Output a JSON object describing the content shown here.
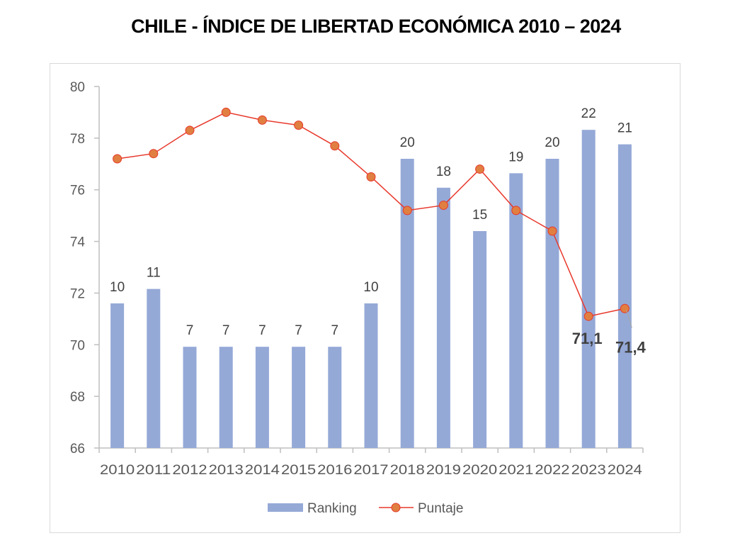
{
  "chart_data": {
    "type": "bar+line",
    "title": "CHILE - ÍNDICE DE LIBERTAD ECONÓMICA 2010 – 2024",
    "xlabel": "",
    "ylabel": "",
    "categories": [
      "2010",
      "2011",
      "2012",
      "2013",
      "2014",
      "2015",
      "2016",
      "2017",
      "2018",
      "2019",
      "2020",
      "2021",
      "2022",
      "2023",
      "2024"
    ],
    "ylim": [
      66,
      80
    ],
    "yticks": [
      66,
      68,
      70,
      72,
      74,
      76,
      78,
      80
    ],
    "secondary_ylim": [
      0,
      25
    ],
    "grid": false,
    "legend_position": "bottom",
    "series": [
      {
        "name": "Ranking",
        "type": "bar",
        "axis": "secondary",
        "color": "#95a9d7",
        "values": [
          10,
          11,
          7,
          7,
          7,
          7,
          7,
          10,
          20,
          18,
          15,
          19,
          20,
          22,
          21
        ],
        "data_labels": [
          "10",
          "11",
          "7",
          "7",
          "7",
          "7",
          "7",
          "10",
          "20",
          "18",
          "15",
          "19",
          "20",
          "22",
          "21"
        ]
      },
      {
        "name": "Puntaje",
        "type": "line",
        "axis": "primary",
        "line_color": "#e8382b",
        "marker_color": "#e07f41",
        "values": [
          77.2,
          77.4,
          78.3,
          79.0,
          78.7,
          78.5,
          77.7,
          76.5,
          75.2,
          75.4,
          76.8,
          75.2,
          74.4,
          71.1,
          71.4
        ],
        "annotations": [
          {
            "category": "2023",
            "label": "71,1"
          },
          {
            "category": "2024",
            "label": "71,4"
          }
        ]
      }
    ]
  }
}
